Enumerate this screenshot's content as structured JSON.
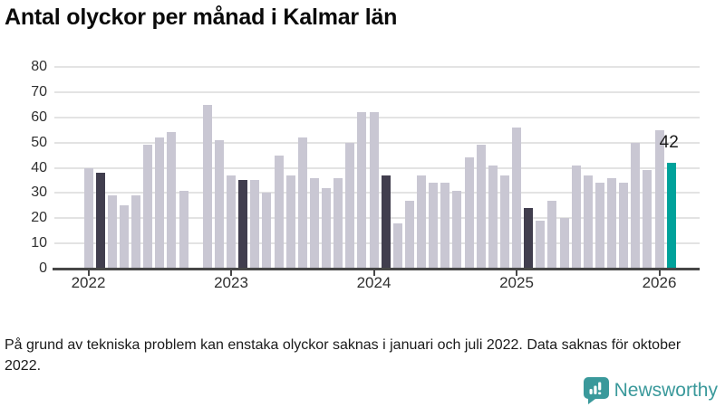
{
  "header": {
    "title": "Antal olyckor per månad i Kalmar län"
  },
  "chart_data": {
    "type": "bar",
    "title": "Antal olyckor per månad i Kalmar län",
    "xlabel": "",
    "ylabel": "",
    "ylim": [
      0,
      80
    ],
    "yticks": [
      0,
      10,
      20,
      30,
      40,
      50,
      60,
      70,
      80
    ],
    "x_tick_labels": [
      "2022",
      "2023",
      "2024",
      "2025",
      "2026"
    ],
    "grid": true,
    "colors": {
      "default": "#c9c7d3",
      "highlight": "#413e4e",
      "current": "#00a29b",
      "gridline": "#e3e3e3",
      "axis": "#474747"
    },
    "bars": [
      {
        "month": "2022-01",
        "value": 40,
        "style": "default"
      },
      {
        "month": "2022-02",
        "value": 38,
        "style": "highlight"
      },
      {
        "month": "2022-03",
        "value": 29,
        "style": "default"
      },
      {
        "month": "2022-04",
        "value": 25,
        "style": "default"
      },
      {
        "month": "2022-05",
        "value": 29,
        "style": "default"
      },
      {
        "month": "2022-06",
        "value": 49,
        "style": "default"
      },
      {
        "month": "2022-07",
        "value": 52,
        "style": "default"
      },
      {
        "month": "2022-08",
        "value": 54,
        "style": "default"
      },
      {
        "month": "2022-09",
        "value": 31,
        "style": "default"
      },
      {
        "month": "2022-10",
        "value": null,
        "style": "missing"
      },
      {
        "month": "2022-11",
        "value": 65,
        "style": "default"
      },
      {
        "month": "2022-12",
        "value": 51,
        "style": "default"
      },
      {
        "month": "2023-01",
        "value": 37,
        "style": "default"
      },
      {
        "month": "2023-02",
        "value": 35,
        "style": "highlight"
      },
      {
        "month": "2023-03",
        "value": 35,
        "style": "default"
      },
      {
        "month": "2023-04",
        "value": 30,
        "style": "default"
      },
      {
        "month": "2023-05",
        "value": 45,
        "style": "default"
      },
      {
        "month": "2023-06",
        "value": 37,
        "style": "default"
      },
      {
        "month": "2023-07",
        "value": 52,
        "style": "default"
      },
      {
        "month": "2023-08",
        "value": 36,
        "style": "default"
      },
      {
        "month": "2023-09",
        "value": 32,
        "style": "default"
      },
      {
        "month": "2023-10",
        "value": 36,
        "style": "default"
      },
      {
        "month": "2023-11",
        "value": 50,
        "style": "default"
      },
      {
        "month": "2023-12",
        "value": 62,
        "style": "default"
      },
      {
        "month": "2024-01",
        "value": 62,
        "style": "default"
      },
      {
        "month": "2024-02",
        "value": 37,
        "style": "highlight"
      },
      {
        "month": "2024-03",
        "value": 18,
        "style": "default"
      },
      {
        "month": "2024-04",
        "value": 27,
        "style": "default"
      },
      {
        "month": "2024-05",
        "value": 37,
        "style": "default"
      },
      {
        "month": "2024-06",
        "value": 34,
        "style": "default"
      },
      {
        "month": "2024-07",
        "value": 34,
        "style": "default"
      },
      {
        "month": "2024-08",
        "value": 31,
        "style": "default"
      },
      {
        "month": "2024-09",
        "value": 44,
        "style": "default"
      },
      {
        "month": "2024-10",
        "value": 49,
        "style": "default"
      },
      {
        "month": "2024-11",
        "value": 41,
        "style": "default"
      },
      {
        "month": "2024-12",
        "value": 37,
        "style": "default"
      },
      {
        "month": "2025-01",
        "value": 56,
        "style": "default"
      },
      {
        "month": "2025-02",
        "value": 24,
        "style": "highlight"
      },
      {
        "month": "2025-03",
        "value": 19,
        "style": "default"
      },
      {
        "month": "2025-04",
        "value": 27,
        "style": "default"
      },
      {
        "month": "2025-05",
        "value": 20,
        "style": "default"
      },
      {
        "month": "2025-06",
        "value": 41,
        "style": "default"
      },
      {
        "month": "2025-07",
        "value": 37,
        "style": "default"
      },
      {
        "month": "2025-08",
        "value": 34,
        "style": "default"
      },
      {
        "month": "2025-09",
        "value": 36,
        "style": "default"
      },
      {
        "month": "2025-10",
        "value": 34,
        "style": "default"
      },
      {
        "month": "2025-11",
        "value": 50,
        "style": "default"
      },
      {
        "month": "2025-12",
        "value": 39,
        "style": "default"
      },
      {
        "month": "2026-01",
        "value": 55,
        "style": "default"
      },
      {
        "month": "2026-02",
        "value": 42,
        "style": "current"
      }
    ],
    "annotation": {
      "text": "42",
      "bar_index": 49
    },
    "legend": null
  },
  "footer": {
    "note": "På grund av tekniska problem kan enstaka olyckor saknas i januari och juli 2022. Data saknas för oktober 2022.",
    "logo_text": "Newsworthy",
    "logo_color": "#3a999b"
  }
}
